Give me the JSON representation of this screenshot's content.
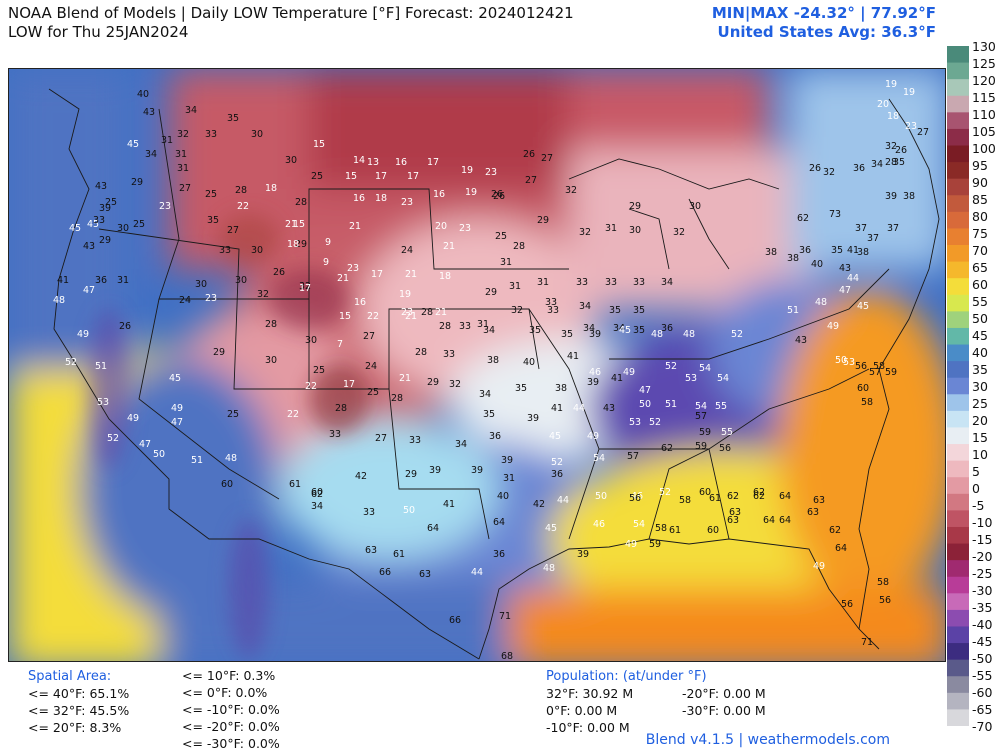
{
  "header": {
    "title_line1": "NOAA Blend of Models | Daily LOW Temperature [°F] Forecast: 2024012421",
    "title_line2": "LOW for Thu 25JAN2024",
    "minmax": "MIN|MAX -24.32°  |  77.92°F",
    "avg": "United States Avg: 36.3°F"
  },
  "colors": {
    "cold_red": "#b83a4a",
    "cool_pink": "#eeb9bf",
    "near_white": "#e8eef3",
    "cyan": "#a6dcf0",
    "blue": "#4f73c2",
    "purple": "#5b42a6",
    "yellow": "#f4dd3a",
    "orange": "#f59a21",
    "ocean_orange": "#f58a1c",
    "accent": "#1f5fe0"
  },
  "color_scale": {
    "labels": [
      "130",
      "125",
      "120",
      "115",
      "110",
      "105",
      "100",
      "95",
      "90",
      "85",
      "80",
      "75",
      "70",
      "65",
      "60",
      "55",
      "50",
      "45",
      "40",
      "35",
      "30",
      "25",
      "20",
      "15",
      "10",
      "5",
      "0",
      "-5",
      "-10",
      "-15",
      "-20",
      "-25",
      "-30",
      "-35",
      "-40",
      "-45",
      "-50",
      "-55",
      "-60",
      "-65",
      "-70"
    ],
    "stops": [
      "#4a8a7a",
      "#6ca892",
      "#a8c8b8",
      "#c9a8b0",
      "#a85470",
      "#8c2c48",
      "#7a1c24",
      "#8a2a26",
      "#a8423a",
      "#c25a3c",
      "#d86a3a",
      "#e88030",
      "#f29a28",
      "#f5b82c",
      "#f4dd3a",
      "#d8e84e",
      "#9fd27c",
      "#62b8a8",
      "#4a8cc8",
      "#4f73c2",
      "#6a86d4",
      "#9ec4ea",
      "#c8e4f4",
      "#e8eef3",
      "#f3d6da",
      "#eeb9bf",
      "#e39aa3",
      "#d27882",
      "#bf5464",
      "#a83848",
      "#8c2238",
      "#a02a70",
      "#b83c98",
      "#c86ab8",
      "#8c4cb0",
      "#5b42a6",
      "#3c2c80",
      "#5a5a8a",
      "#8a8aa0",
      "#b4b4c0",
      "#d8d8dc"
    ]
  },
  "map": {
    "temperature_labels": [
      {
        "t": "40"
      },
      {
        "t": "43"
      },
      {
        "t": "34"
      },
      {
        "t": "35"
      },
      {
        "t": "31"
      },
      {
        "t": "32"
      },
      {
        "t": "33"
      },
      {
        "t": "30"
      },
      {
        "t": "45"
      },
      {
        "t": "34"
      },
      {
        "t": "31"
      },
      {
        "t": "31"
      },
      {
        "t": "30"
      },
      {
        "t": "15"
      },
      {
        "t": "14"
      },
      {
        "t": "13"
      },
      {
        "t": "16"
      },
      {
        "t": "17"
      },
      {
        "t": "19"
      },
      {
        "t": "23"
      },
      {
        "t": "26"
      },
      {
        "t": "27"
      },
      {
        "t": "43"
      },
      {
        "t": "29"
      },
      {
        "t": "27"
      },
      {
        "t": "25"
      },
      {
        "t": "28"
      },
      {
        "t": "18"
      },
      {
        "t": "25"
      },
      {
        "t": "15"
      },
      {
        "t": "17"
      },
      {
        "t": "17"
      },
      {
        "t": "16"
      },
      {
        "t": "19"
      },
      {
        "t": "26"
      },
      {
        "t": "27"
      },
      {
        "t": "45"
      },
      {
        "t": "39"
      },
      {
        "t": "25"
      },
      {
        "t": "23"
      },
      {
        "t": "22"
      },
      {
        "t": "28"
      },
      {
        "t": "16"
      },
      {
        "t": "18"
      },
      {
        "t": "23"
      },
      {
        "t": "20"
      },
      {
        "t": "23"
      },
      {
        "t": "26"
      },
      {
        "t": "29"
      },
      {
        "t": "32"
      },
      {
        "t": "45"
      },
      {
        "t": "33"
      },
      {
        "t": "30"
      },
      {
        "t": "25"
      },
      {
        "t": "35"
      },
      {
        "t": "27"
      },
      {
        "t": "21"
      },
      {
        "t": "21"
      },
      {
        "t": "15"
      },
      {
        "t": "9"
      },
      {
        "t": "24"
      },
      {
        "t": "21"
      },
      {
        "t": "25"
      },
      {
        "t": "28"
      },
      {
        "t": "32"
      },
      {
        "t": "31"
      },
      {
        "t": "30"
      },
      {
        "t": "32"
      },
      {
        "t": "30"
      },
      {
        "t": "29"
      },
      {
        "t": "43"
      },
      {
        "t": "29"
      },
      {
        "t": "33"
      },
      {
        "t": "30"
      },
      {
        "t": "29"
      },
      {
        "t": "18"
      },
      {
        "t": "9"
      },
      {
        "t": "23"
      },
      {
        "t": "17"
      },
      {
        "t": "21"
      },
      {
        "t": "18"
      },
      {
        "t": "31"
      },
      {
        "t": "31"
      },
      {
        "t": "33"
      },
      {
        "t": "33"
      },
      {
        "t": "33"
      },
      {
        "t": "34"
      },
      {
        "t": "41"
      },
      {
        "t": "36"
      },
      {
        "t": "31"
      },
      {
        "t": "30"
      },
      {
        "t": "30"
      },
      {
        "t": "32"
      },
      {
        "t": "26"
      },
      {
        "t": "32"
      },
      {
        "t": "17"
      },
      {
        "t": "21"
      },
      {
        "t": "16"
      },
      {
        "t": "19"
      },
      {
        "t": "21"
      },
      {
        "t": "29"
      },
      {
        "t": "31"
      },
      {
        "t": "33"
      },
      {
        "t": "34"
      },
      {
        "t": "35"
      },
      {
        "t": "35"
      },
      {
        "t": "48"
      },
      {
        "t": "47"
      },
      {
        "t": "24"
      },
      {
        "t": "23"
      },
      {
        "t": "28"
      },
      {
        "t": "15"
      },
      {
        "t": "22"
      },
      {
        "t": "21"
      },
      {
        "t": "28"
      },
      {
        "t": "31"
      },
      {
        "t": "32"
      },
      {
        "t": "33"
      },
      {
        "t": "34"
      },
      {
        "t": "34"
      },
      {
        "t": "35"
      },
      {
        "t": "36"
      },
      {
        "t": "49"
      },
      {
        "t": "26"
      },
      {
        "t": "30"
      },
      {
        "t": "30"
      },
      {
        "t": "7"
      },
      {
        "t": "27"
      },
      {
        "t": "23"
      },
      {
        "t": "28"
      },
      {
        "t": "33"
      },
      {
        "t": "34"
      },
      {
        "t": "35"
      },
      {
        "t": "35"
      },
      {
        "t": "39"
      },
      {
        "t": "45"
      },
      {
        "t": "48"
      },
      {
        "t": "48"
      },
      {
        "t": "52"
      },
      {
        "t": "52"
      },
      {
        "t": "51"
      },
      {
        "t": "29"
      },
      {
        "t": "25"
      },
      {
        "t": "24"
      },
      {
        "t": "21"
      },
      {
        "t": "28"
      },
      {
        "t": "33"
      },
      {
        "t": "38"
      },
      {
        "t": "40"
      },
      {
        "t": "41"
      },
      {
        "t": "46"
      },
      {
        "t": "49"
      },
      {
        "t": "52"
      },
      {
        "t": "54"
      },
      {
        "t": "53"
      },
      {
        "t": "45"
      },
      {
        "t": "22"
      },
      {
        "t": "17"
      },
      {
        "t": "25"
      },
      {
        "t": "29"
      },
      {
        "t": "32"
      },
      {
        "t": "34"
      },
      {
        "t": "35"
      },
      {
        "t": "38"
      },
      {
        "t": "39"
      },
      {
        "t": "41"
      },
      {
        "t": "47"
      },
      {
        "t": "53"
      },
      {
        "t": "54"
      },
      {
        "t": "49"
      },
      {
        "t": "49"
      },
      {
        "t": "25"
      },
      {
        "t": "22"
      },
      {
        "t": "28"
      },
      {
        "t": "28"
      },
      {
        "t": "35"
      },
      {
        "t": "39"
      },
      {
        "t": "41"
      },
      {
        "t": "44"
      },
      {
        "t": "43"
      },
      {
        "t": "50"
      },
      {
        "t": "51"
      },
      {
        "t": "54"
      },
      {
        "t": "55"
      },
      {
        "t": "52"
      },
      {
        "t": "47"
      },
      {
        "t": "47"
      },
      {
        "t": "33"
      },
      {
        "t": "27"
      },
      {
        "t": "33"
      },
      {
        "t": "34"
      },
      {
        "t": "36"
      },
      {
        "t": "45"
      },
      {
        "t": "49"
      },
      {
        "t": "53"
      },
      {
        "t": "52"
      },
      {
        "t": "57"
      },
      {
        "t": "59"
      },
      {
        "t": "55"
      },
      {
        "t": "50"
      },
      {
        "t": "51"
      },
      {
        "t": "48"
      },
      {
        "t": "39"
      },
      {
        "t": "39"
      },
      {
        "t": "39"
      },
      {
        "t": "52"
      },
      {
        "t": "54"
      },
      {
        "t": "57"
      },
      {
        "t": "62"
      },
      {
        "t": "59"
      },
      {
        "t": "56"
      },
      {
        "t": "60"
      },
      {
        "t": "61"
      },
      {
        "t": "42"
      },
      {
        "t": "29"
      },
      {
        "t": "31"
      },
      {
        "t": "36"
      },
      {
        "t": "46"
      },
      {
        "t": "52"
      },
      {
        "t": "60"
      },
      {
        "t": "62"
      },
      {
        "t": "63"
      },
      {
        "t": "62"
      },
      {
        "t": "62"
      },
      {
        "t": "60"
      },
      {
        "t": "34"
      },
      {
        "t": "33"
      },
      {
        "t": "50"
      },
      {
        "t": "41"
      },
      {
        "t": "40"
      },
      {
        "t": "42"
      },
      {
        "t": "44"
      },
      {
        "t": "50"
      },
      {
        "t": "56"
      },
      {
        "t": "58"
      },
      {
        "t": "61"
      },
      {
        "t": "62"
      },
      {
        "t": "64"
      },
      {
        "t": "64"
      },
      {
        "t": "64"
      },
      {
        "t": "45"
      },
      {
        "t": "46"
      },
      {
        "t": "54"
      },
      {
        "t": "58"
      },
      {
        "t": "61"
      },
      {
        "t": "60"
      },
      {
        "t": "63"
      },
      {
        "t": "64"
      },
      {
        "t": "64"
      },
      {
        "t": "63"
      },
      {
        "t": "63"
      },
      {
        "t": "63"
      },
      {
        "t": "61"
      },
      {
        "t": "36"
      },
      {
        "t": "39"
      },
      {
        "t": "49"
      },
      {
        "t": "59"
      },
      {
        "t": "64"
      },
      {
        "t": "62"
      },
      {
        "t": "66"
      },
      {
        "t": "63"
      },
      {
        "t": "44"
      },
      {
        "t": "48"
      },
      {
        "t": "49"
      },
      {
        "t": "58"
      },
      {
        "t": "66"
      },
      {
        "t": "71"
      },
      {
        "t": "56"
      },
      {
        "t": "56"
      },
      {
        "t": "68"
      },
      {
        "t": "71"
      },
      {
        "t": "62"
      },
      {
        "t": "73"
      },
      {
        "t": "37"
      },
      {
        "t": "37"
      },
      {
        "t": "37"
      },
      {
        "t": "41"
      },
      {
        "t": "36"
      },
      {
        "t": "35"
      },
      {
        "t": "38"
      },
      {
        "t": "38"
      },
      {
        "t": "38"
      },
      {
        "t": "40"
      },
      {
        "t": "43"
      },
      {
        "t": "44"
      },
      {
        "t": "48"
      },
      {
        "t": "45"
      },
      {
        "t": "47"
      },
      {
        "t": "51"
      },
      {
        "t": "43"
      },
      {
        "t": "49"
      },
      {
        "t": "50"
      },
      {
        "t": "53"
      },
      {
        "t": "56"
      },
      {
        "t": "58"
      },
      {
        "t": "57"
      },
      {
        "t": "59"
      },
      {
        "t": "60"
      },
      {
        "t": "58"
      },
      {
        "t": "19"
      },
      {
        "t": "19"
      },
      {
        "t": "20"
      },
      {
        "t": "18"
      },
      {
        "t": "23"
      },
      {
        "t": "27"
      },
      {
        "t": "26"
      },
      {
        "t": "32"
      },
      {
        "t": "28"
      },
      {
        "t": "34"
      },
      {
        "t": "35"
      },
      {
        "t": "26"
      },
      {
        "t": "32"
      },
      {
        "t": "36"
      },
      {
        "t": "39"
      },
      {
        "t": "38"
      }
    ]
  },
  "spatial_area": {
    "title": "Spatial Area:",
    "col1": [
      "<= 40°F: 65.1%",
      "<= 32°F: 45.5%",
      "<= 20°F: 8.3%"
    ],
    "col2": [
      "<= 10°F: 0.3%",
      "<= 0°F: 0.0%",
      "<= -10°F: 0.0%",
      "<= -20°F: 0.0%",
      "<= -30°F: 0.0%"
    ]
  },
  "population": {
    "title": "Population: (at/under °F)",
    "col1": [
      "32°F: 30.92 M",
      "0°F: 0.00 M",
      "-10°F: 0.00 M"
    ],
    "col2": [
      "-20°F: 0.00 M",
      "-30°F: 0.00 M"
    ]
  },
  "credit": "Blend v4.1.5 | weathermodels.com"
}
